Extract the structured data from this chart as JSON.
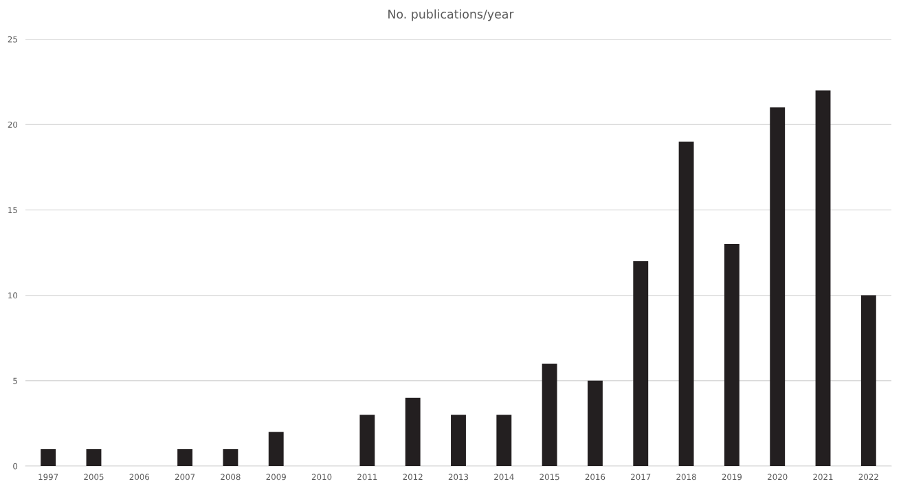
{
  "chart_data": {
    "type": "bar",
    "title": "No. publications/year",
    "categories": [
      "1997",
      "2005",
      "2006",
      "2007",
      "2008",
      "2009",
      "2010",
      "2011",
      "2012",
      "2013",
      "2014",
      "2015",
      "2016",
      "2017",
      "2018",
      "2019",
      "2020",
      "2021",
      "2022"
    ],
    "values": [
      1,
      1,
      0,
      1,
      1,
      2,
      0,
      3,
      4,
      3,
      3,
      6,
      5,
      12,
      19,
      13,
      21,
      22,
      10
    ],
    "color": "#231f20",
    "ylim": [
      0,
      25
    ],
    "yticks": [
      0,
      5,
      10,
      15,
      20,
      25
    ],
    "grid": "y",
    "legend": false
  }
}
